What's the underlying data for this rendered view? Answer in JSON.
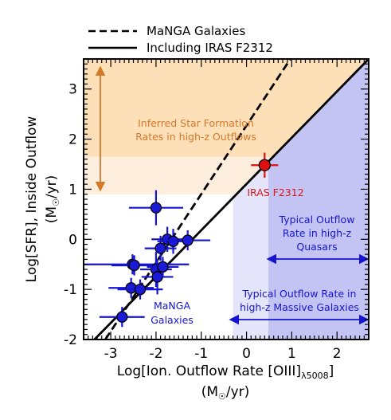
{
  "chart_data": {
    "type": "scatter",
    "xlabel_line1": "Log[Ion. Outflow Rate [OIII]",
    "xlabel_sub": "λ5008",
    "xlabel_close": "]",
    "xlabel_line2": "(M",
    "xlabel_line2_sym": "☉",
    "xlabel_line2_end": "/yr)",
    "ylabel_line1": "Log[SFR], Inside Outflow",
    "ylabel_line2_pre": "(M",
    "ylabel_line2_sym": "☉",
    "ylabel_line2_end": "/yr)",
    "xlim": [
      -3.6,
      2.7
    ],
    "ylim": [
      -2.0,
      3.6
    ],
    "xticks": [
      -3,
      -2,
      -1,
      0,
      1,
      2
    ],
    "yticks": [
      -2,
      -1,
      0,
      1,
      2,
      3
    ],
    "legend": [
      {
        "label": "MaNGA Galaxies",
        "style": "dashed"
      },
      {
        "label": "Including IRAS F2312",
        "style": "solid"
      }
    ],
    "lines": [
      {
        "name": "MaNGA Galaxies",
        "style": "dashed",
        "x": [
          -3.12,
          0.97
        ],
        "y": [
          -2.0,
          3.6
        ]
      },
      {
        "name": "Including IRAS F2312",
        "style": "solid",
        "x": [
          -3.36,
          2.7
        ],
        "y": [
          -2.0,
          3.6
        ]
      }
    ],
    "regions": {
      "sf_band": {
        "y": [
          0.9,
          3.6
        ],
        "color": "#fde0b8"
      },
      "sf_band_light": {
        "y": [
          0.9,
          1.65
        ],
        "color": "#fdeedd"
      },
      "quasar_band": {
        "x": [
          0.48,
          2.7
        ],
        "color": "#c4c4f4"
      },
      "massive_band": {
        "x": [
          -0.3,
          0.48
        ],
        "color": "#e4e4fb"
      }
    },
    "manga_points": [
      {
        "x": -2.75,
        "y": -1.55,
        "xerr": 0.5,
        "yerr": 0.2
      },
      {
        "x": -2.55,
        "y": -0.97,
        "xerr": 0.5,
        "yerr": 0.2
      },
      {
        "x": -2.35,
        "y": -1.0,
        "xerr": 0.5,
        "yerr": 0.2
      },
      {
        "x": -2.52,
        "y": -0.5,
        "xerr": 1.25,
        "yerr": 0.2
      },
      {
        "x": -2.48,
        "y": -0.52,
        "xerr": 0.5,
        "yerr": 0.2
      },
      {
        "x": -2.0,
        "y": 0.63,
        "xerr": 0.6,
        "yerr": 0.35
      },
      {
        "x": -1.9,
        "y": -0.18,
        "xerr": 0.35,
        "yerr": 0.25
      },
      {
        "x": -1.75,
        "y": 0.0,
        "xerr": 0.35,
        "yerr": 0.25
      },
      {
        "x": -1.62,
        "y": -0.04,
        "xerr": 0.35,
        "yerr": 0.25
      },
      {
        "x": -1.3,
        "y": -0.02,
        "xerr": 0.5,
        "yerr": 0.2
      },
      {
        "x": -2.0,
        "y": -0.6,
        "xerr": 0.35,
        "yerr": 0.35
      },
      {
        "x": -1.97,
        "y": -0.75,
        "xerr": 0.35,
        "yerr": 0.35
      },
      {
        "x": -1.85,
        "y": -0.55,
        "xerr": 0.35,
        "yerr": 0.2
      }
    ],
    "iras_point": {
      "x": 0.4,
      "y": 1.48,
      "xerr": 0.3,
      "yerr": 0.25
    },
    "annotations": {
      "sf_line1": "Inferred Star Formation",
      "sf_line2": "Rates in high-z Outflows",
      "iras_label": "IRAS F2312",
      "quasar_line1": "Typical Outflow",
      "quasar_line2": "Rate in high-z",
      "quasar_line3": "Quasars",
      "massive_line1": "Typical Outflow Rate in",
      "massive_line2": "high-z Massive Galaxies",
      "manga_line1": "MaNGA",
      "manga_line2": "Galaxies"
    },
    "colors": {
      "manga": "#1a1ad8",
      "manga_err": "#1515d0",
      "iras": "#e01010",
      "annot_orange": "#d4782a",
      "annot_blue": "#1515d0",
      "annot_red": "#d81818"
    }
  }
}
